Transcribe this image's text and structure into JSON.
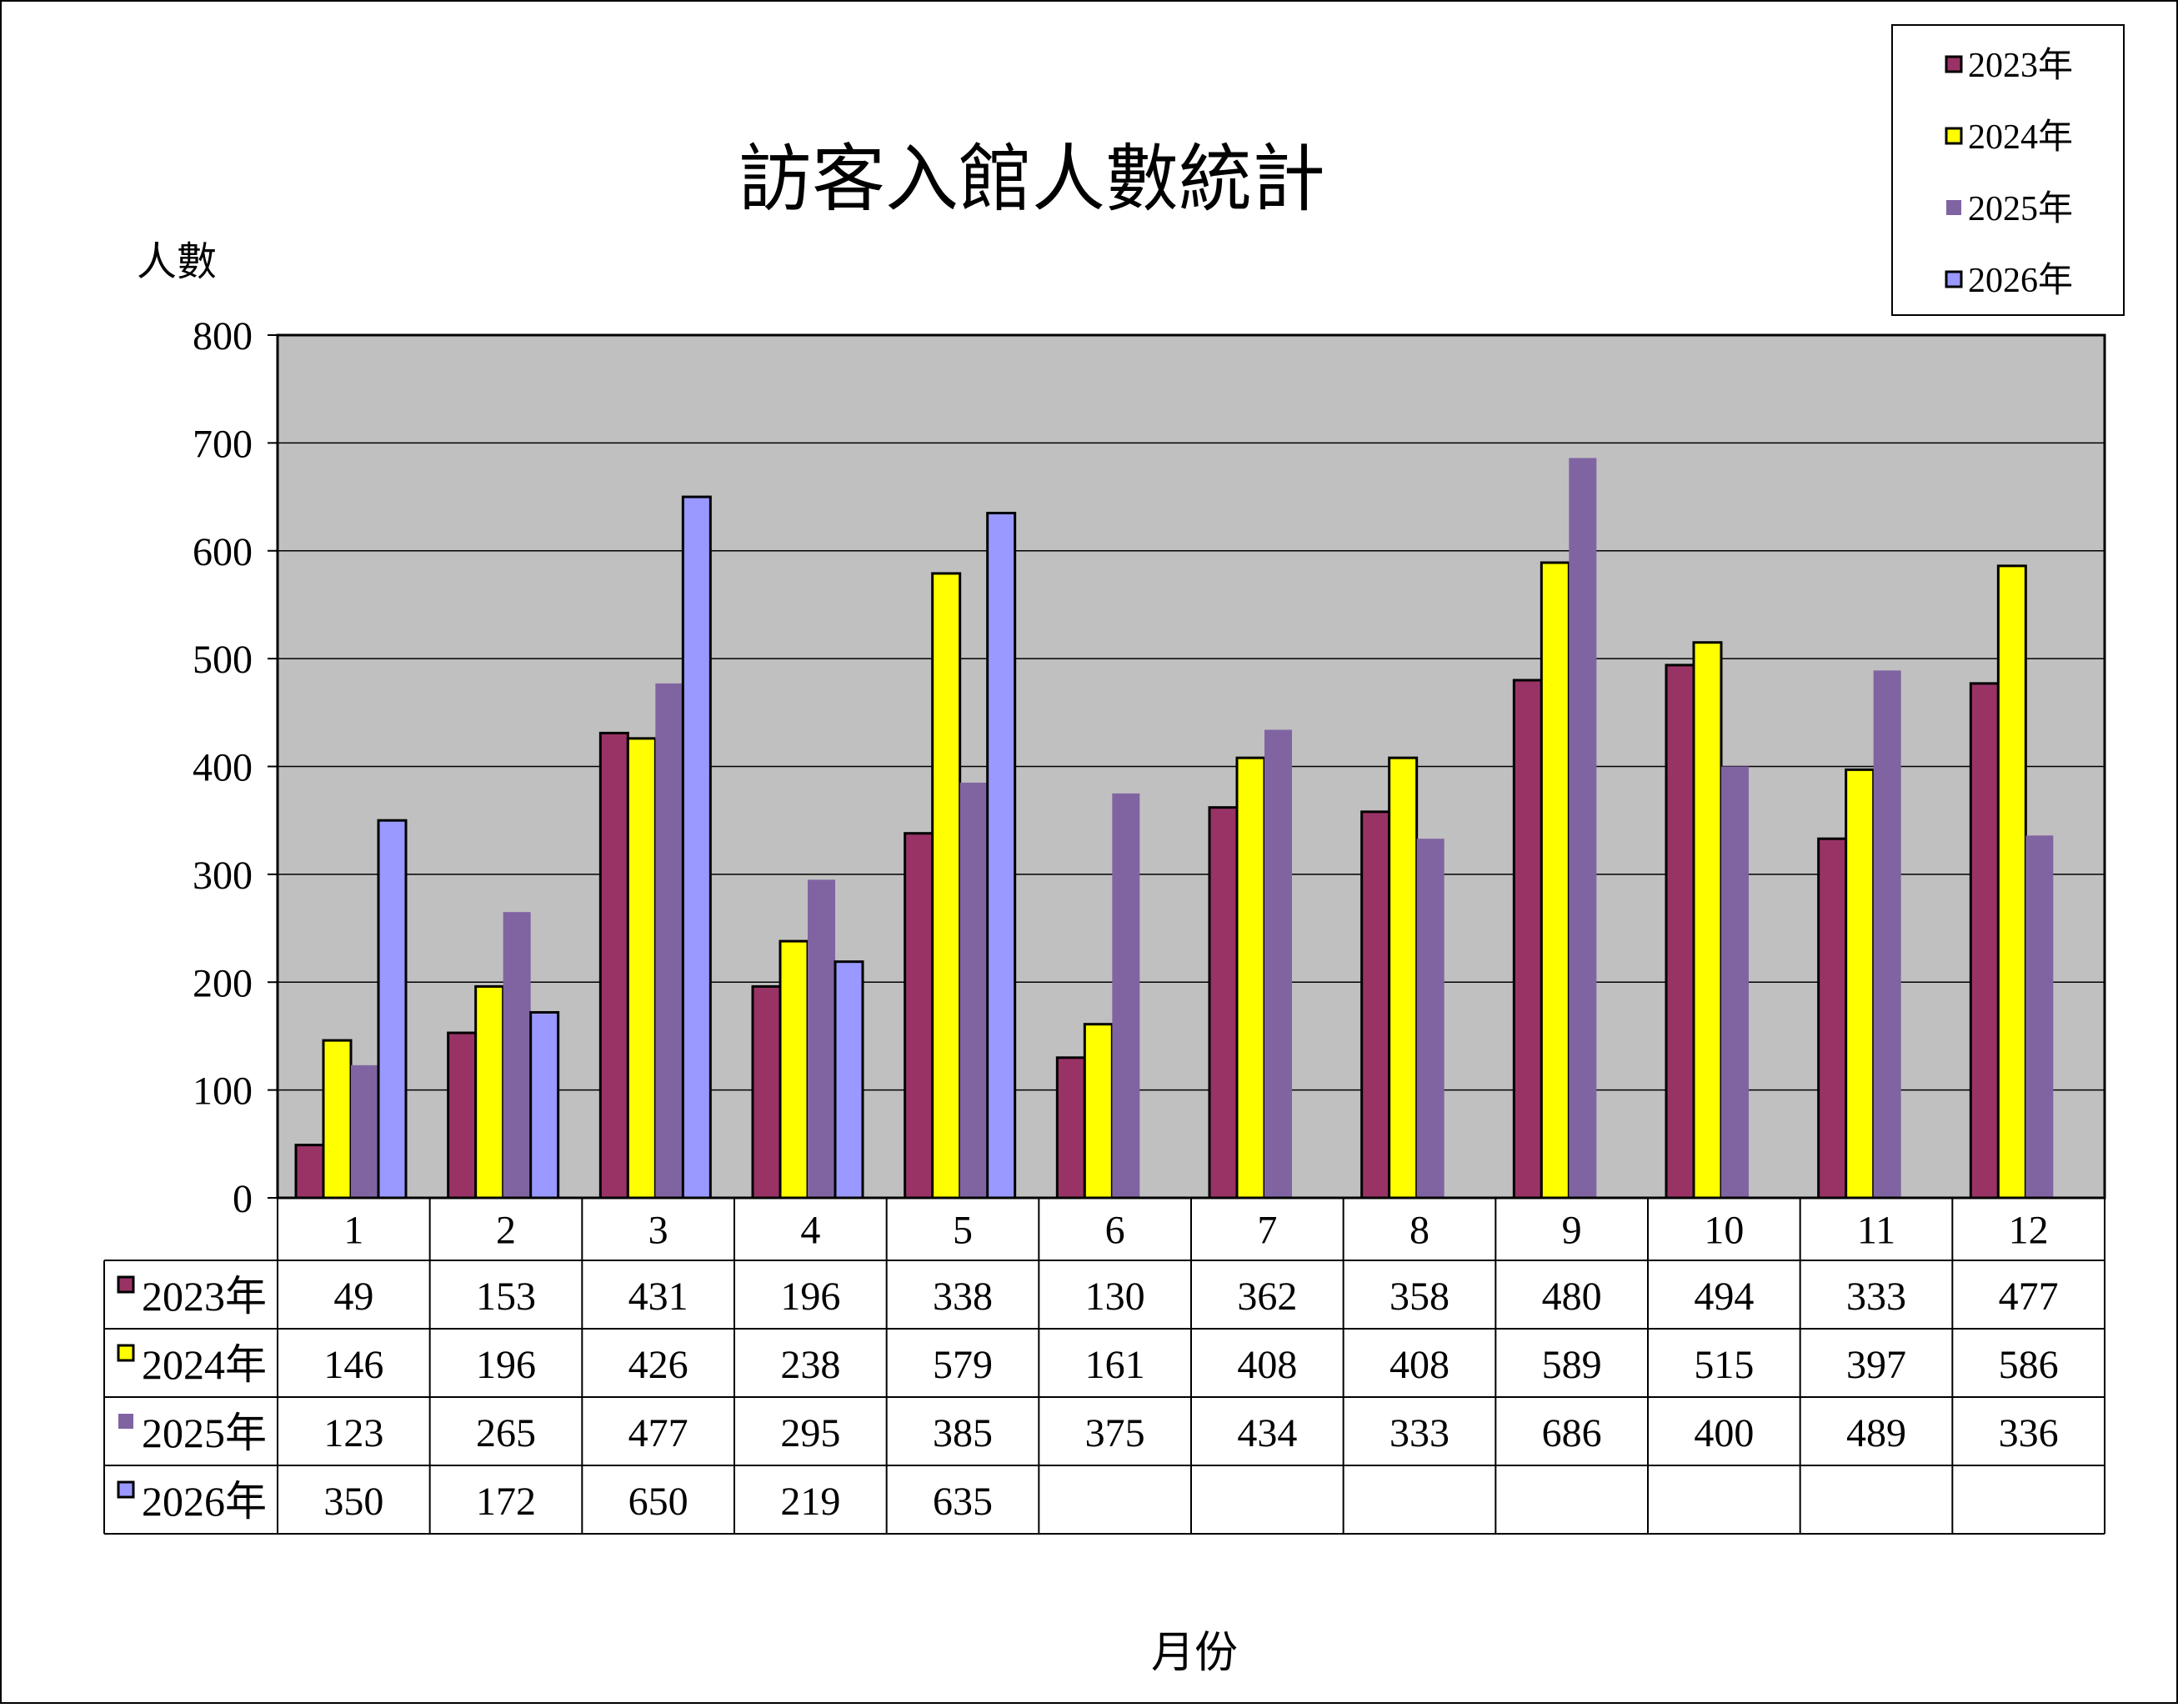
{
  "chart_data": {
    "type": "bar",
    "title": "訪客入館人數統計",
    "ylabel": "人數",
    "xlabel": "月份",
    "ylim": [
      0,
      800
    ],
    "yticks": [
      "0",
      "100",
      "200",
      "300",
      "400",
      "500",
      "600",
      "700",
      "800"
    ],
    "categories": [
      "1",
      "2",
      "3",
      "4",
      "5",
      "6",
      "7",
      "8",
      "9",
      "10",
      "11",
      "12"
    ],
    "grid": true,
    "legend_position": "top-right",
    "plot_background": "#c0c0c0",
    "series": [
      {
        "name": "2023年",
        "color": "#993366",
        "outlined": true,
        "values": [
          49,
          153,
          431,
          196,
          338,
          130,
          362,
          358,
          480,
          494,
          333,
          477
        ]
      },
      {
        "name": "2024年",
        "color": "#ffff00",
        "outlined": true,
        "values": [
          146,
          196,
          426,
          238,
          579,
          161,
          408,
          408,
          589,
          515,
          397,
          586
        ]
      },
      {
        "name": "2025年",
        "color": "#8064a2",
        "outlined": false,
        "values": [
          123,
          265,
          477,
          295,
          385,
          375,
          434,
          333,
          686,
          400,
          489,
          336
        ]
      },
      {
        "name": "2026年",
        "color": "#9999ff",
        "outlined": true,
        "values": [
          350,
          172,
          650,
          219,
          635,
          null,
          null,
          null,
          null,
          null,
          null,
          null
        ]
      }
    ]
  }
}
